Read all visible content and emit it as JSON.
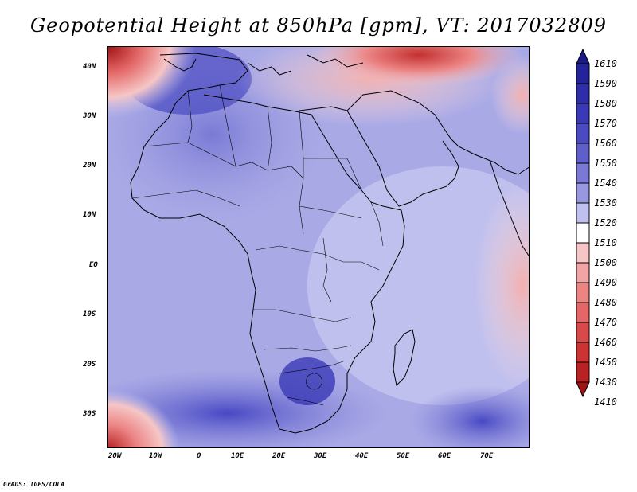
{
  "title": "Geopotential Height at 850hPa [gpm], VT: 2017032809",
  "credit": "GrADS: IGES/COLA",
  "map": {
    "region": "Africa and Arabian Peninsula",
    "lat_range": [
      -36,
      45
    ],
    "lon_range": [
      -22,
      80
    ],
    "lat_labels": [
      "40N",
      "30N",
      "20N",
      "10N",
      "EQ",
      "10S",
      "20S",
      "30S"
    ],
    "lon_labels": [
      "20W",
      "10W",
      "0",
      "10E",
      "20E",
      "30E",
      "40E",
      "50E",
      "60E",
      "70E"
    ]
  },
  "legend": {
    "levels": [
      "1610",
      "1590",
      "1580",
      "1570",
      "1560",
      "1550",
      "1540",
      "1530",
      "1520",
      "1510",
      "1500",
      "1490",
      "1480",
      "1470",
      "1460",
      "1450",
      "1430",
      "1410"
    ],
    "colors": [
      "#1a1a8c",
      "#23239a",
      "#2e2ea8",
      "#3a3ab6",
      "#4a4ac2",
      "#5f5fcc",
      "#7a7ad6",
      "#9898e0",
      "#c0c0ee",
      "#ffffff",
      "#f6c6c6",
      "#f2a4a4",
      "#ec8484",
      "#e46666",
      "#d84a4a",
      "#cc3434",
      "#b82222",
      "#a01414"
    ]
  }
}
